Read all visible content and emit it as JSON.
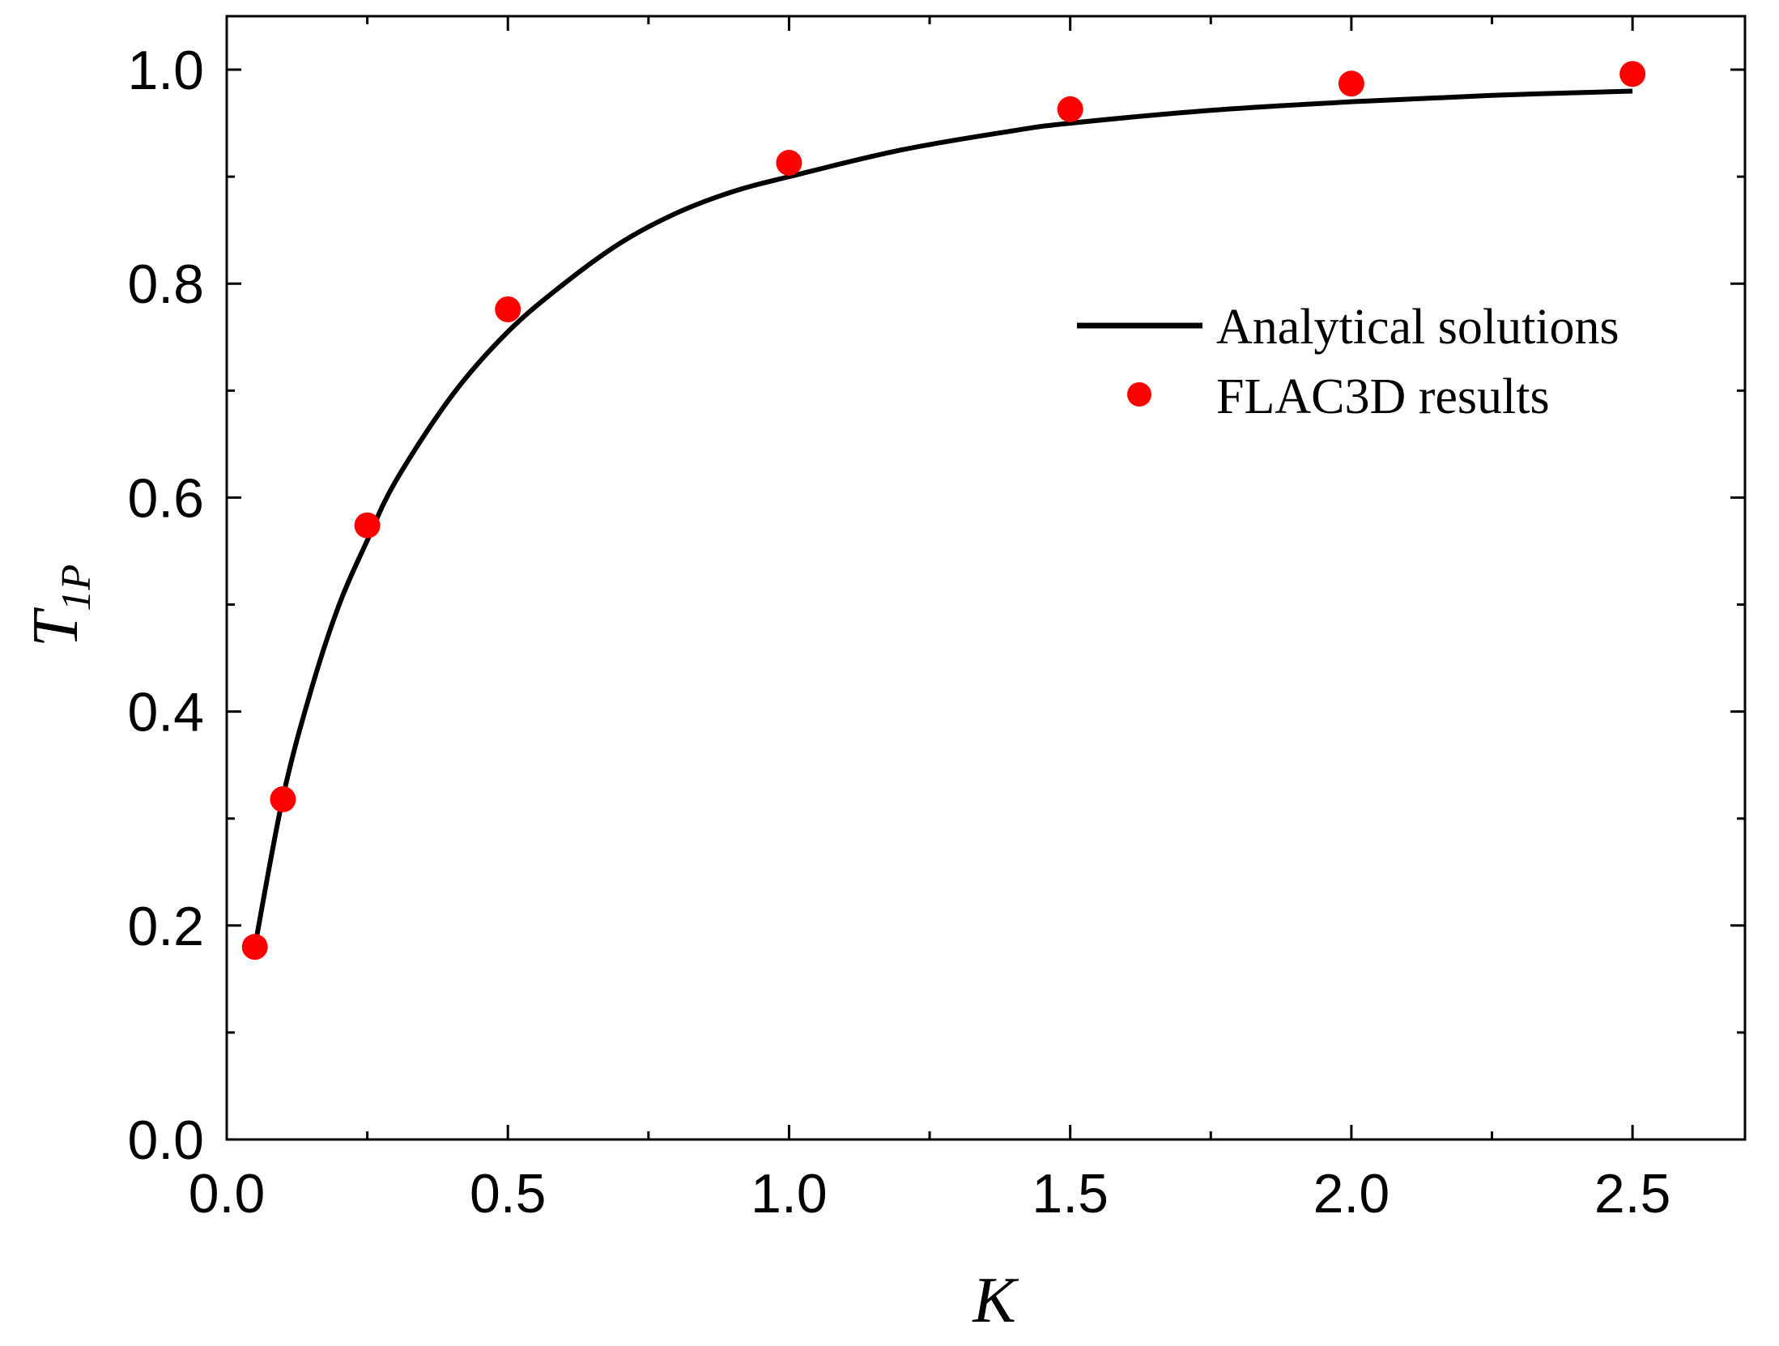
{
  "chart_data": {
    "type": "line",
    "xlabel": "K",
    "ylabel": {
      "main": "T",
      "sub": "1P"
    },
    "xlim": [
      0.0,
      2.7
    ],
    "ylim": [
      0.0,
      1.05
    ],
    "x_ticks": [
      "0.0",
      "0.5",
      "1.0",
      "1.5",
      "2.0",
      "2.5"
    ],
    "y_ticks": [
      "0.0",
      "0.2",
      "0.4",
      "0.6",
      "0.8",
      "1.0"
    ],
    "legend_position": "right",
    "series": [
      {
        "name": "Analytical solutions",
        "kind": "line",
        "color": "#000000",
        "x": [
          0.05,
          0.1,
          0.15,
          0.2,
          0.25,
          0.3,
          0.4,
          0.5,
          0.6,
          0.7,
          0.8,
          0.9,
          1.0,
          1.2,
          1.4,
          1.5,
          1.75,
          2.0,
          2.25,
          2.5
        ],
        "y": [
          0.18,
          0.32,
          0.42,
          0.5,
          0.56,
          0.615,
          0.695,
          0.755,
          0.8,
          0.838,
          0.866,
          0.886,
          0.9,
          0.925,
          0.943,
          0.95,
          0.962,
          0.97,
          0.976,
          0.98
        ]
      },
      {
        "name": "FLAC3D results",
        "kind": "scatter",
        "color": "#ff0000",
        "x": [
          0.05,
          0.1,
          0.25,
          0.5,
          1.0,
          1.5,
          2.0,
          2.5
        ],
        "y": [
          0.18,
          0.318,
          0.574,
          0.776,
          0.913,
          0.963,
          0.987,
          0.996
        ]
      }
    ]
  }
}
